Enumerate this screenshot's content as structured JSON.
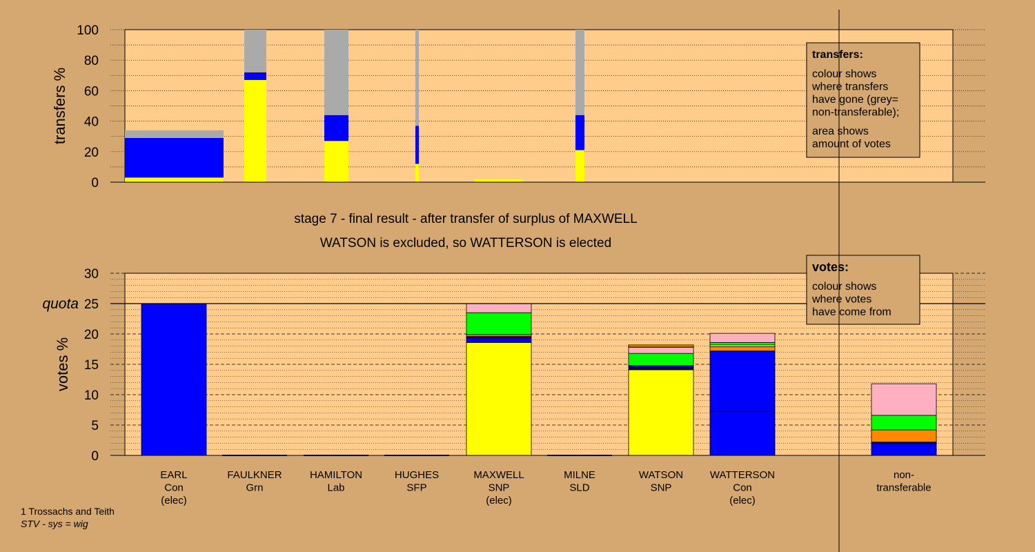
{
  "colors": {
    "background": "#d4a870",
    "plot_area": "#ffcc8c",
    "grey": "#aaaaaa",
    "blue": "#0000ff",
    "yellow": "#ffff00",
    "green": "#00ff00",
    "orange": "#ff8800",
    "pink": "#ffb0c0",
    "navy": "#000080"
  },
  "chart_data": [
    {
      "type": "bar",
      "ylabel": "transfers %",
      "ylim": [
        0,
        100
      ],
      "yticks": [
        0,
        20,
        40,
        60,
        80,
        100
      ],
      "grid": true,
      "legend": {
        "position": "top-right",
        "title": "transfers:",
        "lines1": [
          "colour shows",
          "where transfers",
          "have gone (grey=",
          "non-transferable);"
        ],
        "lines2": [
          "area shows",
          "amount of votes"
        ]
      },
      "bars": [
        {
          "candidate": "EARL",
          "segments": [
            {
              "color": "yellow",
              "from": 0,
              "to": 3
            },
            {
              "color": "blue",
              "from": 3,
              "to": 29
            },
            {
              "color": "grey",
              "from": 29,
              "to": 34
            }
          ]
        },
        {
          "candidate": "FAULKNER",
          "segments": [
            {
              "color": "yellow",
              "from": 0,
              "to": 67
            },
            {
              "color": "blue",
              "from": 67,
              "to": 72
            },
            {
              "color": "grey",
              "from": 72,
              "to": 100
            }
          ]
        },
        {
          "candidate": "HAMILTON",
          "segments": [
            {
              "color": "yellow",
              "from": 0,
              "to": 27
            },
            {
              "color": "blue",
              "from": 27,
              "to": 44
            },
            {
              "color": "grey",
              "from": 44,
              "to": 100
            }
          ]
        },
        {
          "candidate": "HUGHES",
          "segments": [
            {
              "color": "yellow",
              "from": 0,
              "to": 12
            },
            {
              "color": "blue",
              "from": 12,
              "to": 37
            },
            {
              "color": "grey",
              "from": 37,
              "to": 100
            }
          ]
        },
        {
          "candidate": "MAXWELL",
          "segments": [
            {
              "color": "yellow",
              "from": 0,
              "to": 2
            }
          ]
        },
        {
          "candidate": "MILNE",
          "segments": [
            {
              "color": "yellow",
              "from": 0,
              "to": 21
            },
            {
              "color": "blue",
              "from": 21,
              "to": 44
            },
            {
              "color": "grey",
              "from": 44,
              "to": 100
            }
          ]
        }
      ]
    },
    {
      "type": "bar",
      "ylabel": "votes %",
      "ylim": [
        0,
        30
      ],
      "yticks": [
        0,
        5,
        10,
        15,
        20,
        25,
        30
      ],
      "quota": {
        "label": "quota",
        "value": 25
      },
      "grid": true,
      "legend": {
        "position": "top-right",
        "title": "votes:",
        "lines": [
          "colour shows",
          "where votes",
          "have come from"
        ]
      },
      "categories": [
        [
          "EARL",
          "Con",
          "(elec)"
        ],
        [
          "FAULKNER",
          "Grn"
        ],
        [
          "HAMILTON",
          "Lab"
        ],
        [
          "HUGHES",
          "SFP"
        ],
        [
          "MAXWELL",
          "SNP",
          "(elec)"
        ],
        [
          "MILNE",
          "SLD"
        ],
        [
          "WATSON",
          "SNP"
        ],
        [
          "WATTERSON",
          "Con",
          "(elec)"
        ],
        [
          "non-",
          "transferable"
        ]
      ],
      "bars": [
        {
          "candidate": "EARL",
          "segments": [
            {
              "color": "blue",
              "from": 0,
              "to": 25
            }
          ]
        },
        {
          "candidate": "FAULKNER",
          "segments": []
        },
        {
          "candidate": "HAMILTON",
          "segments": []
        },
        {
          "candidate": "HUGHES",
          "segments": []
        },
        {
          "candidate": "MAXWELL",
          "segments": [
            {
              "color": "yellow",
              "from": 0,
              "to": 18.6
            },
            {
              "color": "blue",
              "from": 18.6,
              "to": 19.3
            },
            {
              "color": "navy",
              "from": 19.3,
              "to": 19.6
            },
            {
              "color": "orange",
              "from": 19.6,
              "to": 19.9
            },
            {
              "color": "green",
              "from": 19.9,
              "to": 23.5
            },
            {
              "color": "pink",
              "from": 23.5,
              "to": 25
            }
          ]
        },
        {
          "candidate": "MILNE",
          "segments": []
        },
        {
          "candidate": "WATSON",
          "segments": [
            {
              "color": "yellow",
              "from": 0,
              "to": 14.1
            },
            {
              "color": "navy",
              "from": 14.1,
              "to": 14.5
            },
            {
              "color": "blue",
              "from": 14.5,
              "to": 14.8
            },
            {
              "color": "green",
              "from": 14.8,
              "to": 16.8
            },
            {
              "color": "pink",
              "from": 16.8,
              "to": 17.8
            },
            {
              "color": "orange",
              "from": 17.8,
              "to": 18.0
            },
            {
              "color": "yellow",
              "from": 18.0,
              "to": 18.2
            }
          ]
        },
        {
          "candidate": "WATTERSON",
          "segments": [
            {
              "color": "blue",
              "from": 0,
              "to": 7.3
            },
            {
              "color": "blue",
              "from": 7.3,
              "to": 17.2
            },
            {
              "color": "orange",
              "from": 17.2,
              "to": 17.9
            },
            {
              "color": "yellow",
              "from": 17.9,
              "to": 18.2
            },
            {
              "color": "green",
              "from": 18.2,
              "to": 18.6
            },
            {
              "color": "pink",
              "from": 18.6,
              "to": 20.1
            }
          ]
        },
        {
          "candidate": "non-transferable",
          "segments": [
            {
              "color": "blue",
              "from": 0,
              "to": 1.9
            },
            {
              "color": "navy",
              "from": 1.9,
              "to": 2.2
            },
            {
              "color": "orange",
              "from": 2.2,
              "to": 4.2
            },
            {
              "color": "green",
              "from": 4.2,
              "to": 6.6
            },
            {
              "color": "pink",
              "from": 6.6,
              "to": 11.8
            }
          ]
        }
      ]
    }
  ],
  "stage_text": {
    "line1": "stage 7 - final result - after transfer of surplus of MAXWELL",
    "line2": "WATSON is excluded, so WATTERSON is elected"
  },
  "footer": {
    "constituency": "1 Trossachs and Teith",
    "system": "STV - sys = wig"
  }
}
